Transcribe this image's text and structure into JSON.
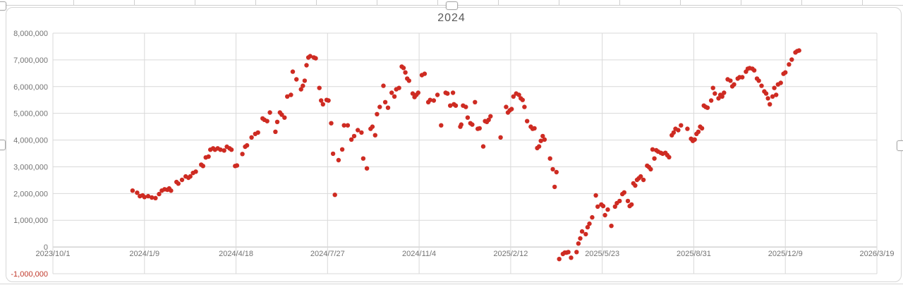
{
  "chart": {
    "title": "2024",
    "selected": true
  },
  "chart_data": {
    "type": "scatter",
    "title": "2024",
    "point_color": "#ce2b22",
    "grid": true,
    "gridline_color": "#d9d9d9",
    "axis_line_color": "#bdbdbd",
    "legend": "none",
    "x_axis": {
      "type": "date",
      "x_unit": "days_since_2023/10/1",
      "tick_interval_days": 100,
      "label_color": "#737373",
      "ticks": [
        {
          "day": 0,
          "label": "2023/10/1"
        },
        {
          "day": 100,
          "label": "2024/1/9"
        },
        {
          "day": 200,
          "label": "2024/4/18"
        },
        {
          "day": 300,
          "label": "2024/7/27"
        },
        {
          "day": 400,
          "label": "2024/11/4"
        },
        {
          "day": 500,
          "label": "2025/2/12"
        },
        {
          "day": 600,
          "label": "2025/5/23"
        },
        {
          "day": 700,
          "label": "2025/8/31"
        },
        {
          "day": 800,
          "label": "2025/12/9"
        },
        {
          "day": 900,
          "label": "2026/3/19"
        }
      ]
    },
    "y_axis": {
      "min": -1000000,
      "max": 8000000,
      "major_unit": 1000000,
      "label_color": "#737373",
      "negative_label_color": "#c0392b",
      "ticks": [
        {
          "value": 8000000,
          "label": "8,000,000"
        },
        {
          "value": 7000000,
          "label": "7,000,000"
        },
        {
          "value": 6000000,
          "label": "6,000,000"
        },
        {
          "value": 5000000,
          "label": "5,000,000"
        },
        {
          "value": 4000000,
          "label": "4,000,000"
        },
        {
          "value": 3000000,
          "label": "3,000,000"
        },
        {
          "value": 2000000,
          "label": "2,000,000"
        },
        {
          "value": 1000000,
          "label": "1,000,000"
        },
        {
          "value": 0,
          "label": "0"
        },
        {
          "value": -1000000,
          "label": "-1,000,000"
        }
      ]
    },
    "points": [
      [
        87,
        2110000
      ],
      [
        92,
        2030000
      ],
      [
        95,
        1900000
      ],
      [
        98,
        1930000
      ],
      [
        100,
        1870000
      ],
      [
        104,
        1900000
      ],
      [
        108,
        1850000
      ],
      [
        112,
        1830000
      ],
      [
        116,
        1980000
      ],
      [
        119,
        2110000
      ],
      [
        122,
        2160000
      ],
      [
        125,
        2140000
      ],
      [
        127,
        2190000
      ],
      [
        129,
        2110000
      ],
      [
        135,
        2430000
      ],
      [
        137,
        2370000
      ],
      [
        141,
        2510000
      ],
      [
        145,
        2640000
      ],
      [
        148,
        2590000
      ],
      [
        150,
        2640000
      ],
      [
        153,
        2770000
      ],
      [
        156,
        2820000
      ],
      [
        162,
        3080000
      ],
      [
        164,
        3030000
      ],
      [
        167,
        3350000
      ],
      [
        170,
        3380000
      ],
      [
        172,
        3640000
      ],
      [
        175,
        3690000
      ],
      [
        177,
        3640000
      ],
      [
        180,
        3690000
      ],
      [
        183,
        3640000
      ],
      [
        187,
        3610000
      ],
      [
        190,
        3750000
      ],
      [
        193,
        3690000
      ],
      [
        195,
        3640000
      ],
      [
        199,
        3030000
      ],
      [
        201,
        3050000
      ],
      [
        207,
        3480000
      ],
      [
        210,
        3750000
      ],
      [
        212,
        3800000
      ],
      [
        217,
        4100000
      ],
      [
        221,
        4230000
      ],
      [
        224,
        4280000
      ],
      [
        229,
        4810000
      ],
      [
        231,
        4760000
      ],
      [
        234,
        4710000
      ],
      [
        237,
        5030000
      ],
      [
        243,
        4310000
      ],
      [
        245,
        4680000
      ],
      [
        248,
        5030000
      ],
      [
        250,
        4950000
      ],
      [
        253,
        4840000
      ],
      [
        256,
        5630000
      ],
      [
        260,
        5690000
      ],
      [
        262,
        6560000
      ],
      [
        266,
        6270000
      ],
      [
        271,
        5900000
      ],
      [
        273,
        6030000
      ],
      [
        275,
        6220000
      ],
      [
        277,
        6800000
      ],
      [
        279,
        7090000
      ],
      [
        281,
        7140000
      ],
      [
        285,
        7090000
      ],
      [
        287,
        7060000
      ],
      [
        291,
        5950000
      ],
      [
        293,
        5480000
      ],
      [
        295,
        5340000
      ],
      [
        299,
        5500000
      ],
      [
        301,
        5480000
      ],
      [
        304,
        4630000
      ],
      [
        306,
        3490000
      ],
      [
        308,
        1950000
      ],
      [
        312,
        3250000
      ],
      [
        316,
        3650000
      ],
      [
        318,
        4550000
      ],
      [
        322,
        4550000
      ],
      [
        326,
        4020000
      ],
      [
        329,
        4150000
      ],
      [
        333,
        4370000
      ],
      [
        337,
        4280000
      ],
      [
        339,
        3310000
      ],
      [
        343,
        2940000
      ],
      [
        347,
        4420000
      ],
      [
        349,
        4500000
      ],
      [
        352,
        4180000
      ],
      [
        354,
        4970000
      ],
      [
        357,
        5240000
      ],
      [
        361,
        6030000
      ],
      [
        363,
        5420000
      ],
      [
        366,
        5210000
      ],
      [
        370,
        5770000
      ],
      [
        373,
        5630000
      ],
      [
        375,
        5900000
      ],
      [
        378,
        5950000
      ],
      [
        381,
        6750000
      ],
      [
        383,
        6700000
      ],
      [
        385,
        6530000
      ],
      [
        387,
        6300000
      ],
      [
        389,
        6220000
      ],
      [
        393,
        5740000
      ],
      [
        395,
        5610000
      ],
      [
        397,
        5690000
      ],
      [
        399,
        5770000
      ],
      [
        403,
        6430000
      ],
      [
        406,
        6480000
      ],
      [
        410,
        5420000
      ],
      [
        412,
        5500000
      ],
      [
        416,
        5480000
      ],
      [
        420,
        5690000
      ],
      [
        424,
        4550000
      ],
      [
        429,
        5770000
      ],
      [
        431,
        5740000
      ],
      [
        434,
        5290000
      ],
      [
        437,
        5770000
      ],
      [
        438,
        5340000
      ],
      [
        440,
        5290000
      ],
      [
        445,
        4500000
      ],
      [
        446,
        4580000
      ],
      [
        448,
        5290000
      ],
      [
        451,
        5240000
      ],
      [
        453,
        4840000
      ],
      [
        456,
        4630000
      ],
      [
        458,
        4580000
      ],
      [
        461,
        5420000
      ],
      [
        464,
        4420000
      ],
      [
        466,
        4440000
      ],
      [
        470,
        3760000
      ],
      [
        472,
        4710000
      ],
      [
        474,
        4680000
      ],
      [
        476,
        4760000
      ],
      [
        478,
        4890000
      ],
      [
        489,
        4100000
      ],
      [
        495,
        5240000
      ],
      [
        497,
        5030000
      ],
      [
        499,
        5110000
      ],
      [
        501,
        5160000
      ],
      [
        503,
        5630000
      ],
      [
        506,
        5740000
      ],
      [
        509,
        5690000
      ],
      [
        511,
        5560000
      ],
      [
        513,
        5500000
      ],
      [
        515,
        5240000
      ],
      [
        518,
        4710000
      ],
      [
        522,
        4500000
      ],
      [
        524,
        4420000
      ],
      [
        526,
        4440000
      ],
      [
        529,
        3700000
      ],
      [
        531,
        3760000
      ],
      [
        533,
        3970000
      ],
      [
        535,
        4150000
      ],
      [
        537,
        4020000
      ],
      [
        543,
        3310000
      ],
      [
        546,
        2910000
      ],
      [
        548,
        2250000
      ],
      [
        550,
        2800000
      ],
      [
        553,
        -450000
      ],
      [
        557,
        -260000
      ],
      [
        559,
        -210000
      ],
      [
        561,
        -210000
      ],
      [
        563,
        -190000
      ],
      [
        566,
        -400000
      ],
      [
        572,
        -190000
      ],
      [
        574,
        130000
      ],
      [
        576,
        320000
      ],
      [
        578,
        580000
      ],
      [
        582,
        480000
      ],
      [
        584,
        740000
      ],
      [
        586,
        870000
      ],
      [
        589,
        1110000
      ],
      [
        593,
        1930000
      ],
      [
        595,
        1510000
      ],
      [
        599,
        1590000
      ],
      [
        601,
        1530000
      ],
      [
        603,
        1190000
      ],
      [
        606,
        1400000
      ],
      [
        610,
        790000
      ],
      [
        614,
        1510000
      ],
      [
        616,
        1640000
      ],
      [
        619,
        1720000
      ],
      [
        622,
        1980000
      ],
      [
        624,
        2040000
      ],
      [
        628,
        1720000
      ],
      [
        630,
        1530000
      ],
      [
        632,
        1590000
      ],
      [
        634,
        2380000
      ],
      [
        636,
        2300000
      ],
      [
        638,
        2510000
      ],
      [
        640,
        2570000
      ],
      [
        642,
        2640000
      ],
      [
        645,
        2510000
      ],
      [
        649,
        3040000
      ],
      [
        651,
        2990000
      ],
      [
        653,
        2910000
      ],
      [
        655,
        3650000
      ],
      [
        657,
        3310000
      ],
      [
        659,
        3620000
      ],
      [
        661,
        3570000
      ],
      [
        664,
        3520000
      ],
      [
        666,
        3490000
      ],
      [
        669,
        3520000
      ],
      [
        671,
        3440000
      ],
      [
        673,
        3360000
      ],
      [
        676,
        4180000
      ],
      [
        678,
        4280000
      ],
      [
        680,
        4420000
      ],
      [
        683,
        4370000
      ],
      [
        686,
        4550000
      ],
      [
        693,
        4420000
      ],
      [
        697,
        4050000
      ],
      [
        699,
        3970000
      ],
      [
        701,
        4020000
      ],
      [
        703,
        4230000
      ],
      [
        705,
        4310000
      ],
      [
        707,
        4500000
      ],
      [
        709,
        4440000
      ],
      [
        711,
        5290000
      ],
      [
        713,
        5240000
      ],
      [
        715,
        5210000
      ],
      [
        719,
        5480000
      ],
      [
        721,
        5950000
      ],
      [
        723,
        5740000
      ],
      [
        727,
        5560000
      ],
      [
        729,
        5690000
      ],
      [
        731,
        5630000
      ],
      [
        733,
        5770000
      ],
      [
        737,
        6270000
      ],
      [
        740,
        6220000
      ],
      [
        742,
        6010000
      ],
      [
        744,
        6080000
      ],
      [
        748,
        6300000
      ],
      [
        750,
        6350000
      ],
      [
        753,
        6350000
      ],
      [
        757,
        6560000
      ],
      [
        759,
        6670000
      ],
      [
        761,
        6690000
      ],
      [
        764,
        6670000
      ],
      [
        766,
        6610000
      ],
      [
        769,
        6300000
      ],
      [
        771,
        6220000
      ],
      [
        774,
        6030000
      ],
      [
        777,
        5820000
      ],
      [
        779,
        5740000
      ],
      [
        781,
        5560000
      ],
      [
        783,
        5340000
      ],
      [
        786,
        5630000
      ],
      [
        788,
        5950000
      ],
      [
        790,
        5690000
      ],
      [
        792,
        6080000
      ],
      [
        795,
        6140000
      ],
      [
        798,
        6480000
      ],
      [
        800,
        6530000
      ],
      [
        804,
        6830000
      ],
      [
        807,
        7010000
      ],
      [
        811,
        7280000
      ],
      [
        813,
        7330000
      ],
      [
        815,
        7350000
      ]
    ]
  }
}
